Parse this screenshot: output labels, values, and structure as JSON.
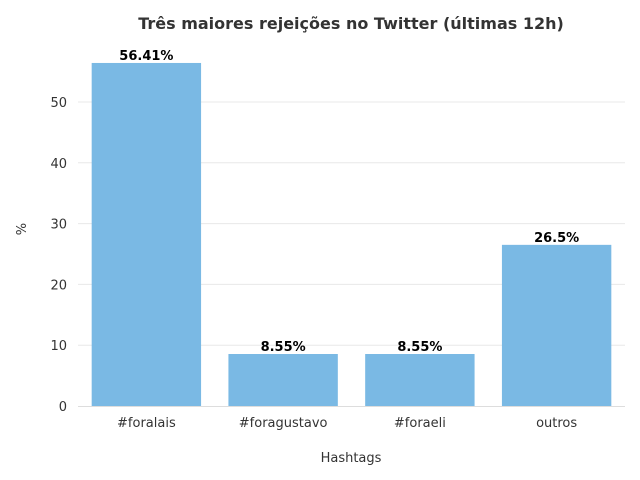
{
  "chart_data": {
    "type": "bar",
    "title": "Três maiores rejeições no Twitter (últimas 12h)",
    "xlabel": "Hashtags",
    "ylabel": "%",
    "categories": [
      "#foralais",
      "#foragustavo",
      "#foraeli",
      "outros"
    ],
    "values": [
      56.41,
      8.55,
      8.55,
      26.5
    ],
    "data_labels": [
      "56.41%",
      "8.55%",
      "8.55%",
      "26.5%"
    ],
    "yticks": [
      0,
      10,
      20,
      30,
      40,
      50
    ],
    "ylim": [
      0,
      59.2
    ],
    "grid": true,
    "bar_color": "#7ab9e4"
  }
}
